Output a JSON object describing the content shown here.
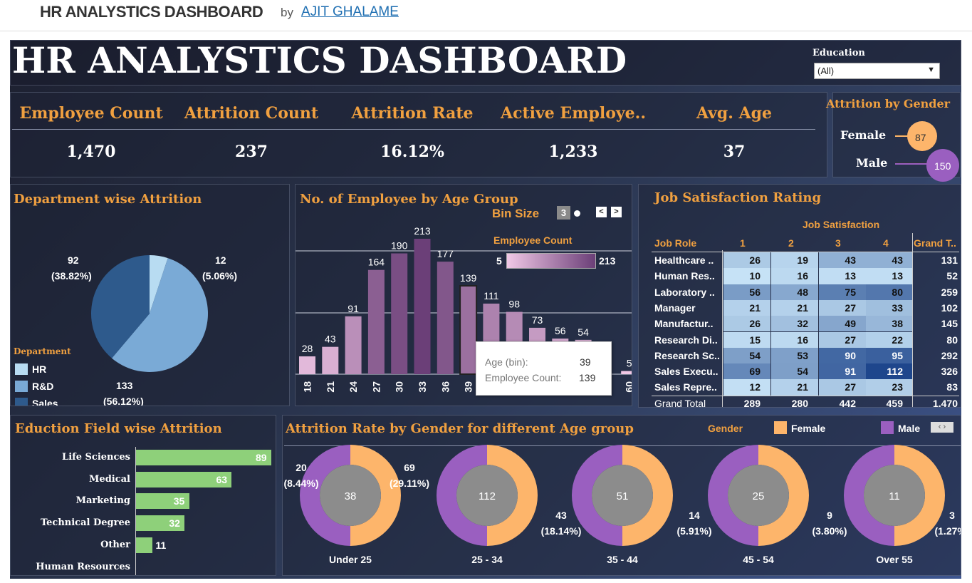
{
  "header": {
    "title": "HR ANALYSTICS DASHBOARD",
    "by": "by",
    "author": "AJIT GHALAME"
  },
  "dashboard": {
    "title": "HR ANALYSTICS DASHBOARD",
    "filter": {
      "label": "Education",
      "value": "(All)"
    }
  },
  "kpis": [
    {
      "label": "Employee Count",
      "value": "1,470"
    },
    {
      "label": "Attrition Count",
      "value": "237"
    },
    {
      "label": "Attrition Rate",
      "value": "16.12%"
    },
    {
      "label": "Active Employe..",
      "value": "1,233"
    },
    {
      "label": "Avg. Age",
      "value": "37"
    }
  ],
  "gender_attrition": {
    "title": "Attrition by Gender",
    "female_label": "Female",
    "female_value": "87",
    "male_label": "Male",
    "male_value": "150"
  },
  "dept": {
    "title": "Department wise Attrition",
    "legend_title": "Department",
    "legend": [
      "HR",
      "R&D",
      "Sales"
    ],
    "labels": [
      {
        "count": "12",
        "pct": "(5.06%)"
      },
      {
        "count": "133",
        "pct": "(56.12%)"
      },
      {
        "count": "92",
        "pct": "(38.82%)"
      }
    ]
  },
  "age_group": {
    "title": "No. of Employee by Age Group",
    "bin_label": "Bin Size",
    "bin_value": "3",
    "legend_title": "Employee Count",
    "legend_min": "5",
    "legend_max": "213",
    "tooltip": {
      "k1": "Age (bin):",
      "v1": "39",
      "k2": "Employee Count:",
      "v2": "139"
    }
  },
  "job_sat": {
    "title": "Job Satisfaction Rating",
    "subtitle": "Job Satisfaction",
    "col_headers": [
      "Job Role",
      "1",
      "2",
      "3",
      "4",
      "Grand T.."
    ],
    "rows": [
      {
        "role": "Healthcare ..",
        "v": [
          "26",
          "19",
          "43",
          "43"
        ],
        "total": "131"
      },
      {
        "role": "Human Res..",
        "v": [
          "10",
          "16",
          "13",
          "13"
        ],
        "total": "52"
      },
      {
        "role": "Laboratory ..",
        "v": [
          "56",
          "48",
          "75",
          "80"
        ],
        "total": "259"
      },
      {
        "role": "Manager",
        "v": [
          "21",
          "21",
          "27",
          "33"
        ],
        "total": "102"
      },
      {
        "role": "Manufactur..",
        "v": [
          "26",
          "32",
          "49",
          "38"
        ],
        "total": "145"
      },
      {
        "role": "Research Di..",
        "v": [
          "15",
          "16",
          "27",
          "22"
        ],
        "total": "80"
      },
      {
        "role": "Research Sc..",
        "v": [
          "54",
          "53",
          "90",
          "95"
        ],
        "total": "292"
      },
      {
        "role": "Sales Execu..",
        "v": [
          "69",
          "54",
          "91",
          "112"
        ],
        "total": "326"
      },
      {
        "role": "Sales Repre..",
        "v": [
          "12",
          "21",
          "27",
          "23"
        ],
        "total": "83"
      }
    ],
    "grand": {
      "role": "Grand Total",
      "v": [
        "289",
        "280",
        "442",
        "459"
      ],
      "total": "1,470"
    }
  },
  "edu": {
    "title": "Eduction Field wise Attrition"
  },
  "gender_age": {
    "title": "Attrition Rate by Gender for different Age group",
    "legend_title": "Gender",
    "female": "Female",
    "male": "Male"
  },
  "colors": {
    "accent": "#f0a040",
    "female": "#fdb56b",
    "male": "#9a5fc0",
    "edu_bar": "#8ed07a",
    "bg": "#2a3350"
  },
  "chart_data": [
    {
      "type": "pie",
      "title": "Department wise Attrition",
      "categories": [
        "HR",
        "R&D",
        "Sales"
      ],
      "values": [
        12,
        133,
        92
      ],
      "percent": [
        5.06,
        56.12,
        38.82
      ],
      "colors": [
        "#b8dcf2",
        "#7aaad6",
        "#2e5a8c"
      ]
    },
    {
      "type": "bar",
      "title": "No. of Employee by Age Group",
      "categories": [
        "18",
        "21",
        "24",
        "27",
        "30",
        "33",
        "36",
        "39",
        "42",
        "45",
        "48",
        "51",
        "54",
        "57",
        "60"
      ],
      "tick_labels": [
        "18",
        "21",
        "24",
        "27",
        "30",
        "33",
        "36",
        "39",
        "60"
      ],
      "values": [
        28,
        43,
        91,
        164,
        190,
        213,
        177,
        139,
        111,
        98,
        73,
        56,
        54,
        0,
        5
      ],
      "ylim": [
        0,
        213
      ]
    },
    {
      "type": "heatmap",
      "title": "Job Satisfaction Rating",
      "xlabel": "Job Satisfaction",
      "ylabel": "Job Role",
      "x": [
        "1",
        "2",
        "3",
        "4"
      ],
      "y": [
        "Healthcare ..",
        "Human Res..",
        "Laboratory ..",
        "Manager",
        "Manufactur..",
        "Research Di..",
        "Research Sc..",
        "Sales Execu..",
        "Sales Repre.."
      ],
      "values": [
        [
          26,
          19,
          43,
          43
        ],
        [
          10,
          16,
          13,
          13
        ],
        [
          56,
          48,
          75,
          80
        ],
        [
          21,
          21,
          27,
          33
        ],
        [
          26,
          32,
          49,
          38
        ],
        [
          15,
          16,
          27,
          22
        ],
        [
          54,
          53,
          90,
          95
        ],
        [
          69,
          54,
          91,
          112
        ],
        [
          12,
          21,
          27,
          23
        ]
      ]
    },
    {
      "type": "bar",
      "title": "Eduction Field wise Attrition",
      "orientation": "horizontal",
      "categories": [
        "Life Sciences",
        "Medical",
        "Marketing",
        "Technical Degree",
        "Other",
        "Human Resources"
      ],
      "values": [
        89,
        63,
        35,
        32,
        11,
        0
      ],
      "value_labels": [
        "89",
        "63",
        "35",
        "32",
        "11",
        ""
      ]
    },
    {
      "type": "pie",
      "title": "Attrition Rate by Gender for different Age group",
      "categories": [
        "Under 25",
        "25 - 34",
        "35 - 44",
        "45 - 54",
        "Over 55"
      ],
      "center_values": [
        38,
        112,
        51,
        25,
        11
      ],
      "series": [
        {
          "name": "Male",
          "values": [
            20,
            43,
            14,
            9,
            3
          ],
          "labels": [
            "20\n(8.44%)",
            "",
            "",
            "",
            ""
          ]
        },
        {
          "name": "Female",
          "values": [
            18,
            69,
            37,
            16,
            8
          ]
        }
      ],
      "side_labels": [
        {
          "count": "20",
          "pct": "(8.44%)"
        },
        {
          "count": "69",
          "pct": "(29.11%)"
        },
        {
          "count": "43",
          "pct": "(18.14%)"
        },
        {
          "count": "14",
          "pct": "(5.91%)"
        },
        {
          "count": "9",
          "pct": "(3.80%)"
        },
        {
          "count": "3",
          "pct": "(1.27%)"
        }
      ]
    }
  ]
}
